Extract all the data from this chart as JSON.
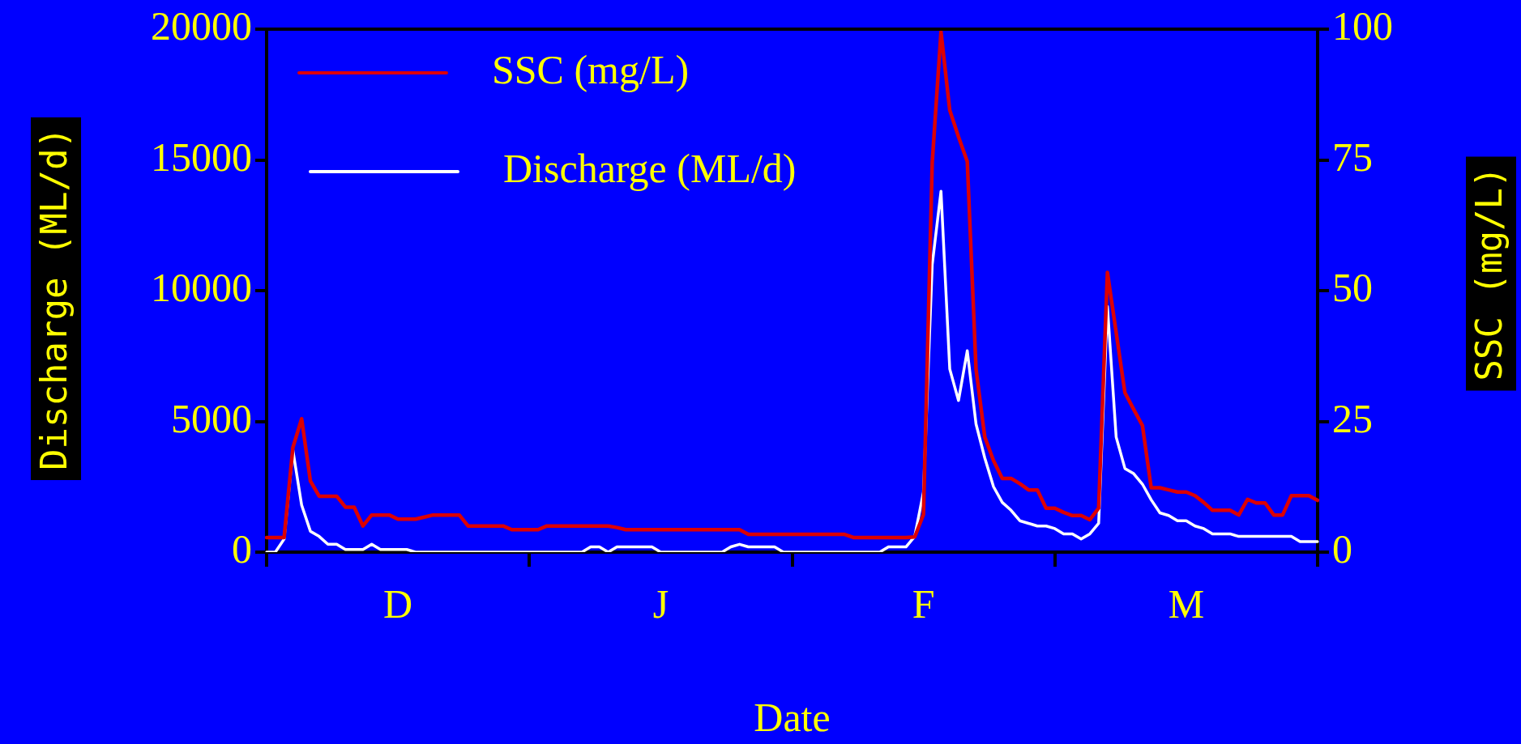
{
  "chart_data": {
    "type": "line",
    "xlabel": "Date",
    "ylabel": "Discharge (ML/d)",
    "y2label": "SSC (mg/L)",
    "categories": [
      null,
      null,
      null,
      null,
      null,
      null,
      null,
      null,
      null,
      null,
      null,
      null,
      null,
      null,
      null,
      "D",
      null,
      null,
      null,
      null,
      null,
      null,
      null,
      null,
      null,
      null,
      null,
      null,
      null,
      null,
      null,
      null,
      null,
      null,
      null,
      null,
      null,
      null,
      null,
      null,
      null,
      null,
      null,
      null,
      null,
      "J",
      null,
      null,
      null,
      null,
      null,
      null,
      null,
      null,
      null,
      null,
      null,
      null,
      null,
      null,
      null,
      null,
      null,
      null,
      null,
      null,
      null,
      null,
      null,
      null,
      null,
      null,
      null,
      null,
      null,
      "F",
      null,
      null,
      null,
      null,
      null,
      null,
      null,
      null,
      null,
      null,
      null,
      null,
      null,
      null,
      null,
      null,
      null,
      null,
      null,
      null,
      null,
      null,
      null,
      null,
      null,
      null,
      null,
      null,
      null,
      "M",
      null,
      null,
      null,
      null,
      null,
      null,
      null,
      null,
      null,
      null,
      null,
      null,
      null,
      null,
      null
    ],
    "ylim": [
      0,
      20000
    ],
    "yticks": [
      0,
      5000,
      10000,
      15000,
      20000
    ],
    "y2lim": [
      0,
      100
    ],
    "y2ticks": [
      0,
      25,
      50,
      75,
      100
    ],
    "legend": "top left",
    "line_style": "solid",
    "series": [
      {
        "name": "SSC (mg/L)",
        "color": "#dd0000",
        "axis": "y2",
        "values": [
          2.8,
          2.8,
          2.8,
          20,
          25.5,
          13.6,
          10.7,
          10.7,
          10.7,
          8.6,
          8.6,
          5,
          7.1,
          7.1,
          7.1,
          6.3,
          6.3,
          6.3,
          6.7,
          7.1,
          7.1,
          7.1,
          7.1,
          5,
          5,
          5,
          5,
          5,
          4.3,
          4.3,
          4.3,
          4.3,
          5,
          5,
          5,
          5,
          5,
          5,
          5,
          5,
          4.7,
          4.3,
          4.3,
          4.3,
          4.3,
          4.3,
          4.3,
          4.3,
          4.3,
          4.3,
          4.3,
          4.3,
          4.3,
          4.3,
          4.3,
          3.4,
          3.4,
          3.4,
          3.4,
          3.4,
          3.4,
          3.4,
          3.4,
          3.4,
          3.4,
          3.4,
          3.4,
          2.8,
          2.8,
          2.8,
          2.8,
          2.8,
          2.8,
          2.8,
          2.9,
          7.2,
          74.5,
          99.5,
          84.5,
          79.4,
          74.7,
          35,
          22,
          17.5,
          14.1,
          14.1,
          13.1,
          11.9,
          11.9,
          8.4,
          8.4,
          7.6,
          7,
          7,
          6.2,
          8.4,
          53.5,
          42,
          30.5,
          27.3,
          24.2,
          12.3,
          12.3,
          11.9,
          11.5,
          11.5,
          10.8,
          9.5,
          8,
          8,
          8,
          7.1,
          10.1,
          9.4,
          9.4,
          7.1,
          7.1,
          10.8,
          10.8,
          10.8,
          9.9
        ]
      },
      {
        "name": "Discharge (ML/d)",
        "color": "#ffffff",
        "values": [
          0,
          0,
          500,
          3900,
          1800,
          800,
          600,
          300,
          300,
          100,
          100,
          100,
          300,
          100,
          100,
          100,
          100,
          0,
          0,
          0,
          0,
          0,
          0,
          0,
          0,
          0,
          0,
          0,
          0,
          0,
          0,
          0,
          0,
          0,
          0,
          0,
          0,
          200,
          200,
          0,
          200,
          200,
          200,
          200,
          200,
          0,
          0,
          0,
          0,
          0,
          0,
          0,
          0,
          200,
          300,
          200,
          200,
          200,
          200,
          0,
          0,
          0,
          0,
          0,
          0,
          0,
          0,
          0,
          0,
          0,
          0,
          200,
          200,
          200,
          600,
          2300,
          11000,
          13800,
          7000,
          5800,
          7700,
          4900,
          3600,
          2500,
          1900,
          1600,
          1200,
          1100,
          1000,
          1000,
          900,
          700,
          700,
          500,
          700,
          1100,
          9400,
          4400,
          3200,
          3000,
          2600,
          2000,
          1500,
          1400,
          1200,
          1200,
          1000,
          900,
          700,
          700,
          700,
          600,
          600,
          600,
          600,
          600,
          600,
          600,
          400,
          400,
          400
        ]
      }
    ]
  }
}
